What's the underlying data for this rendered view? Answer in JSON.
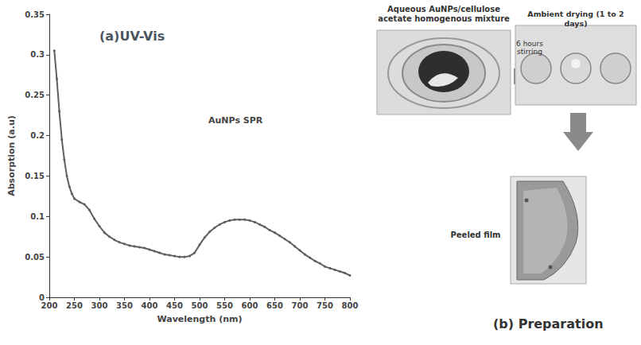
{
  "chart_data": {
    "type": "line",
    "title": "(a)UV-Vis",
    "x_label": "Wavelength (nm)",
    "y_label": "Absorption (a.u)",
    "annotations": [
      "AuNPs SPR"
    ],
    "x": [
      210,
      215,
      220,
      225,
      230,
      235,
      240,
      245,
      250,
      260,
      270,
      280,
      290,
      300,
      310,
      320,
      330,
      340,
      350,
      360,
      370,
      380,
      390,
      400,
      410,
      420,
      430,
      440,
      450,
      460,
      470,
      480,
      490,
      500,
      510,
      520,
      530,
      540,
      550,
      560,
      570,
      580,
      590,
      600,
      610,
      620,
      630,
      640,
      650,
      660,
      670,
      680,
      690,
      700,
      710,
      720,
      730,
      740,
      750,
      760,
      770,
      780,
      790,
      800
    ],
    "values": [
      0.305,
      0.27,
      0.23,
      0.195,
      0.17,
      0.15,
      0.137,
      0.128,
      0.122,
      0.118,
      0.115,
      0.108,
      0.097,
      0.088,
      0.08,
      0.075,
      0.071,
      0.068,
      0.066,
      0.064,
      0.063,
      0.062,
      0.061,
      0.059,
      0.057,
      0.055,
      0.053,
      0.052,
      0.051,
      0.05,
      0.05,
      0.051,
      0.055,
      0.065,
      0.074,
      0.081,
      0.086,
      0.09,
      0.093,
      0.095,
      0.096,
      0.096,
      0.096,
      0.095,
      0.093,
      0.09,
      0.087,
      0.083,
      0.08,
      0.076,
      0.072,
      0.068,
      0.063,
      0.058,
      0.053,
      0.049,
      0.045,
      0.042,
      0.038,
      0.036,
      0.034,
      0.032,
      0.03,
      0.027
    ],
    "color": "#5f5f5f",
    "marker": "circle",
    "line_style": "solid",
    "xlim": [
      200,
      800
    ],
    "xticks": [
      200,
      250,
      300,
      350,
      400,
      450,
      500,
      550,
      600,
      650,
      700,
      750,
      800
    ],
    "ylim": [
      0,
      0.35
    ],
    "yticks": [
      0,
      0.05,
      0.1,
      0.15,
      0.2,
      0.25,
      0.3,
      0.35
    ],
    "grid": false
  },
  "diagram": {
    "step1": {
      "label": "Aqueous AuNPs/cellulose acetate homogenous mixture"
    },
    "arrow1": {
      "label": "6 hours stirring"
    },
    "step2": {
      "label": "Ambient drying (1 to 2 days)"
    },
    "step3": {
      "label": "Peeled film"
    },
    "caption": "(b) Preparation"
  }
}
